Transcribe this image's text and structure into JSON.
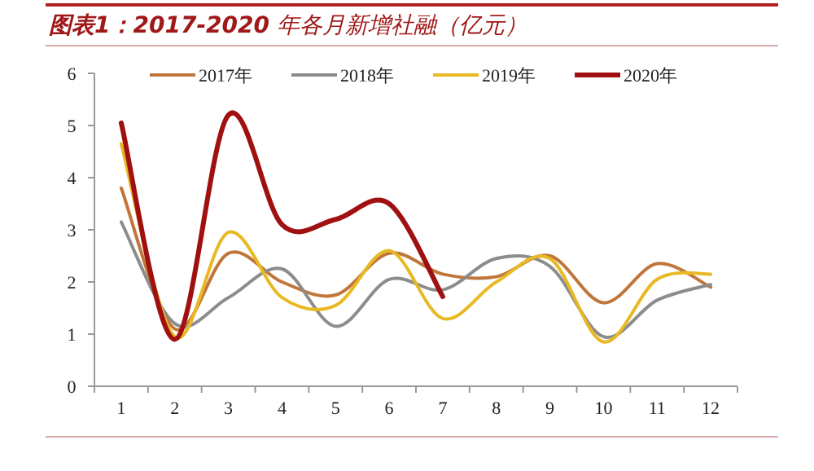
{
  "chart_data": {
    "type": "line",
    "title": "**图表1：2017-2020** 年各月新增社融（亿元）",
    "categories": [
      "1",
      "2",
      "3",
      "4",
      "5",
      "6",
      "7",
      "8",
      "9",
      "10",
      "11",
      "12"
    ],
    "ylim": [
      0,
      6
    ],
    "yticks": [
      0,
      1,
      2,
      3,
      4,
      5,
      6
    ],
    "grid": false,
    "legend": "top",
    "marker": "none",
    "series": [
      {
        "name": "2017年",
        "color": "#c0763a",
        "values": [
          3.8,
          1.1,
          2.55,
          2.0,
          1.75,
          2.55,
          2.15,
          2.1,
          2.5,
          1.6,
          2.35,
          1.9
        ]
      },
      {
        "name": "2018年",
        "color": "#8c8c8c",
        "values": [
          3.15,
          1.2,
          1.7,
          2.25,
          1.15,
          2.05,
          1.85,
          2.45,
          2.3,
          0.95,
          1.65,
          1.95
        ]
      },
      {
        "name": "2019年",
        "color": "#e8b923",
        "values": [
          4.65,
          0.95,
          2.95,
          1.7,
          1.55,
          2.6,
          1.3,
          2.0,
          2.45,
          0.85,
          2.05,
          2.15
        ]
      },
      {
        "name": "2020年",
        "color": "#a01010",
        "values": [
          5.05,
          0.9,
          5.2,
          3.1,
          3.2,
          3.5,
          1.72,
          null,
          null,
          null,
          null,
          null
        ]
      }
    ]
  }
}
